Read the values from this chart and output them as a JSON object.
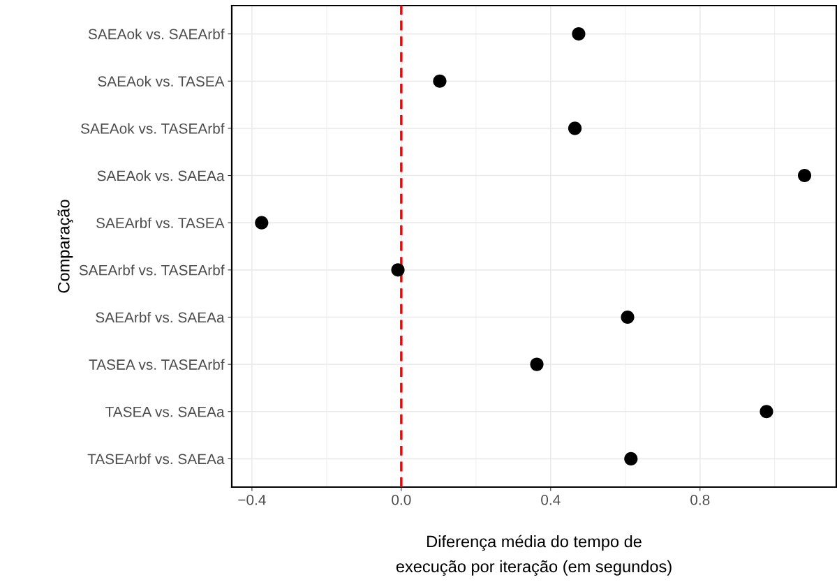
{
  "chart_data": {
    "type": "scatter",
    "orientation": "horizontal",
    "categories": [
      "SAEAok vs. SAEArbf",
      "SAEAok vs. TASEA",
      "SAEAok vs. TASEArbf",
      "SAEAok vs. SAEAa",
      "SAEArbf vs. TASEA",
      "SAEArbf vs. TASEArbf",
      "SAEArbf vs. SAEAa",
      "TASEA vs. TASEArbf",
      "TASEA vs. SAEAa",
      "TASEArbf vs. SAEAa"
    ],
    "series": [
      {
        "color": "#000000",
        "values": [
          0.475,
          0.103,
          0.465,
          1.08,
          -0.374,
          -0.009,
          0.606,
          0.363,
          0.978,
          0.615
        ]
      }
    ],
    "xlabel": "Diferença média do tempo de\nexecução por iteração (em segundos)",
    "ylabel": "Comparação",
    "xlim": [
      -0.454,
      1.165
    ],
    "xticks": [
      {
        "value": -0.4,
        "label": "−0.4"
      },
      {
        "value": 0.0,
        "label": "0.0"
      },
      {
        "value": 0.4,
        "label": "0.4"
      },
      {
        "value": 0.8,
        "label": "0.8"
      }
    ],
    "ref_lines": [
      {
        "axis": "x",
        "value": 0,
        "color": "#ff0000",
        "line_style": "dashed"
      }
    ],
    "grid": true,
    "marker": "circle",
    "legend": false
  }
}
